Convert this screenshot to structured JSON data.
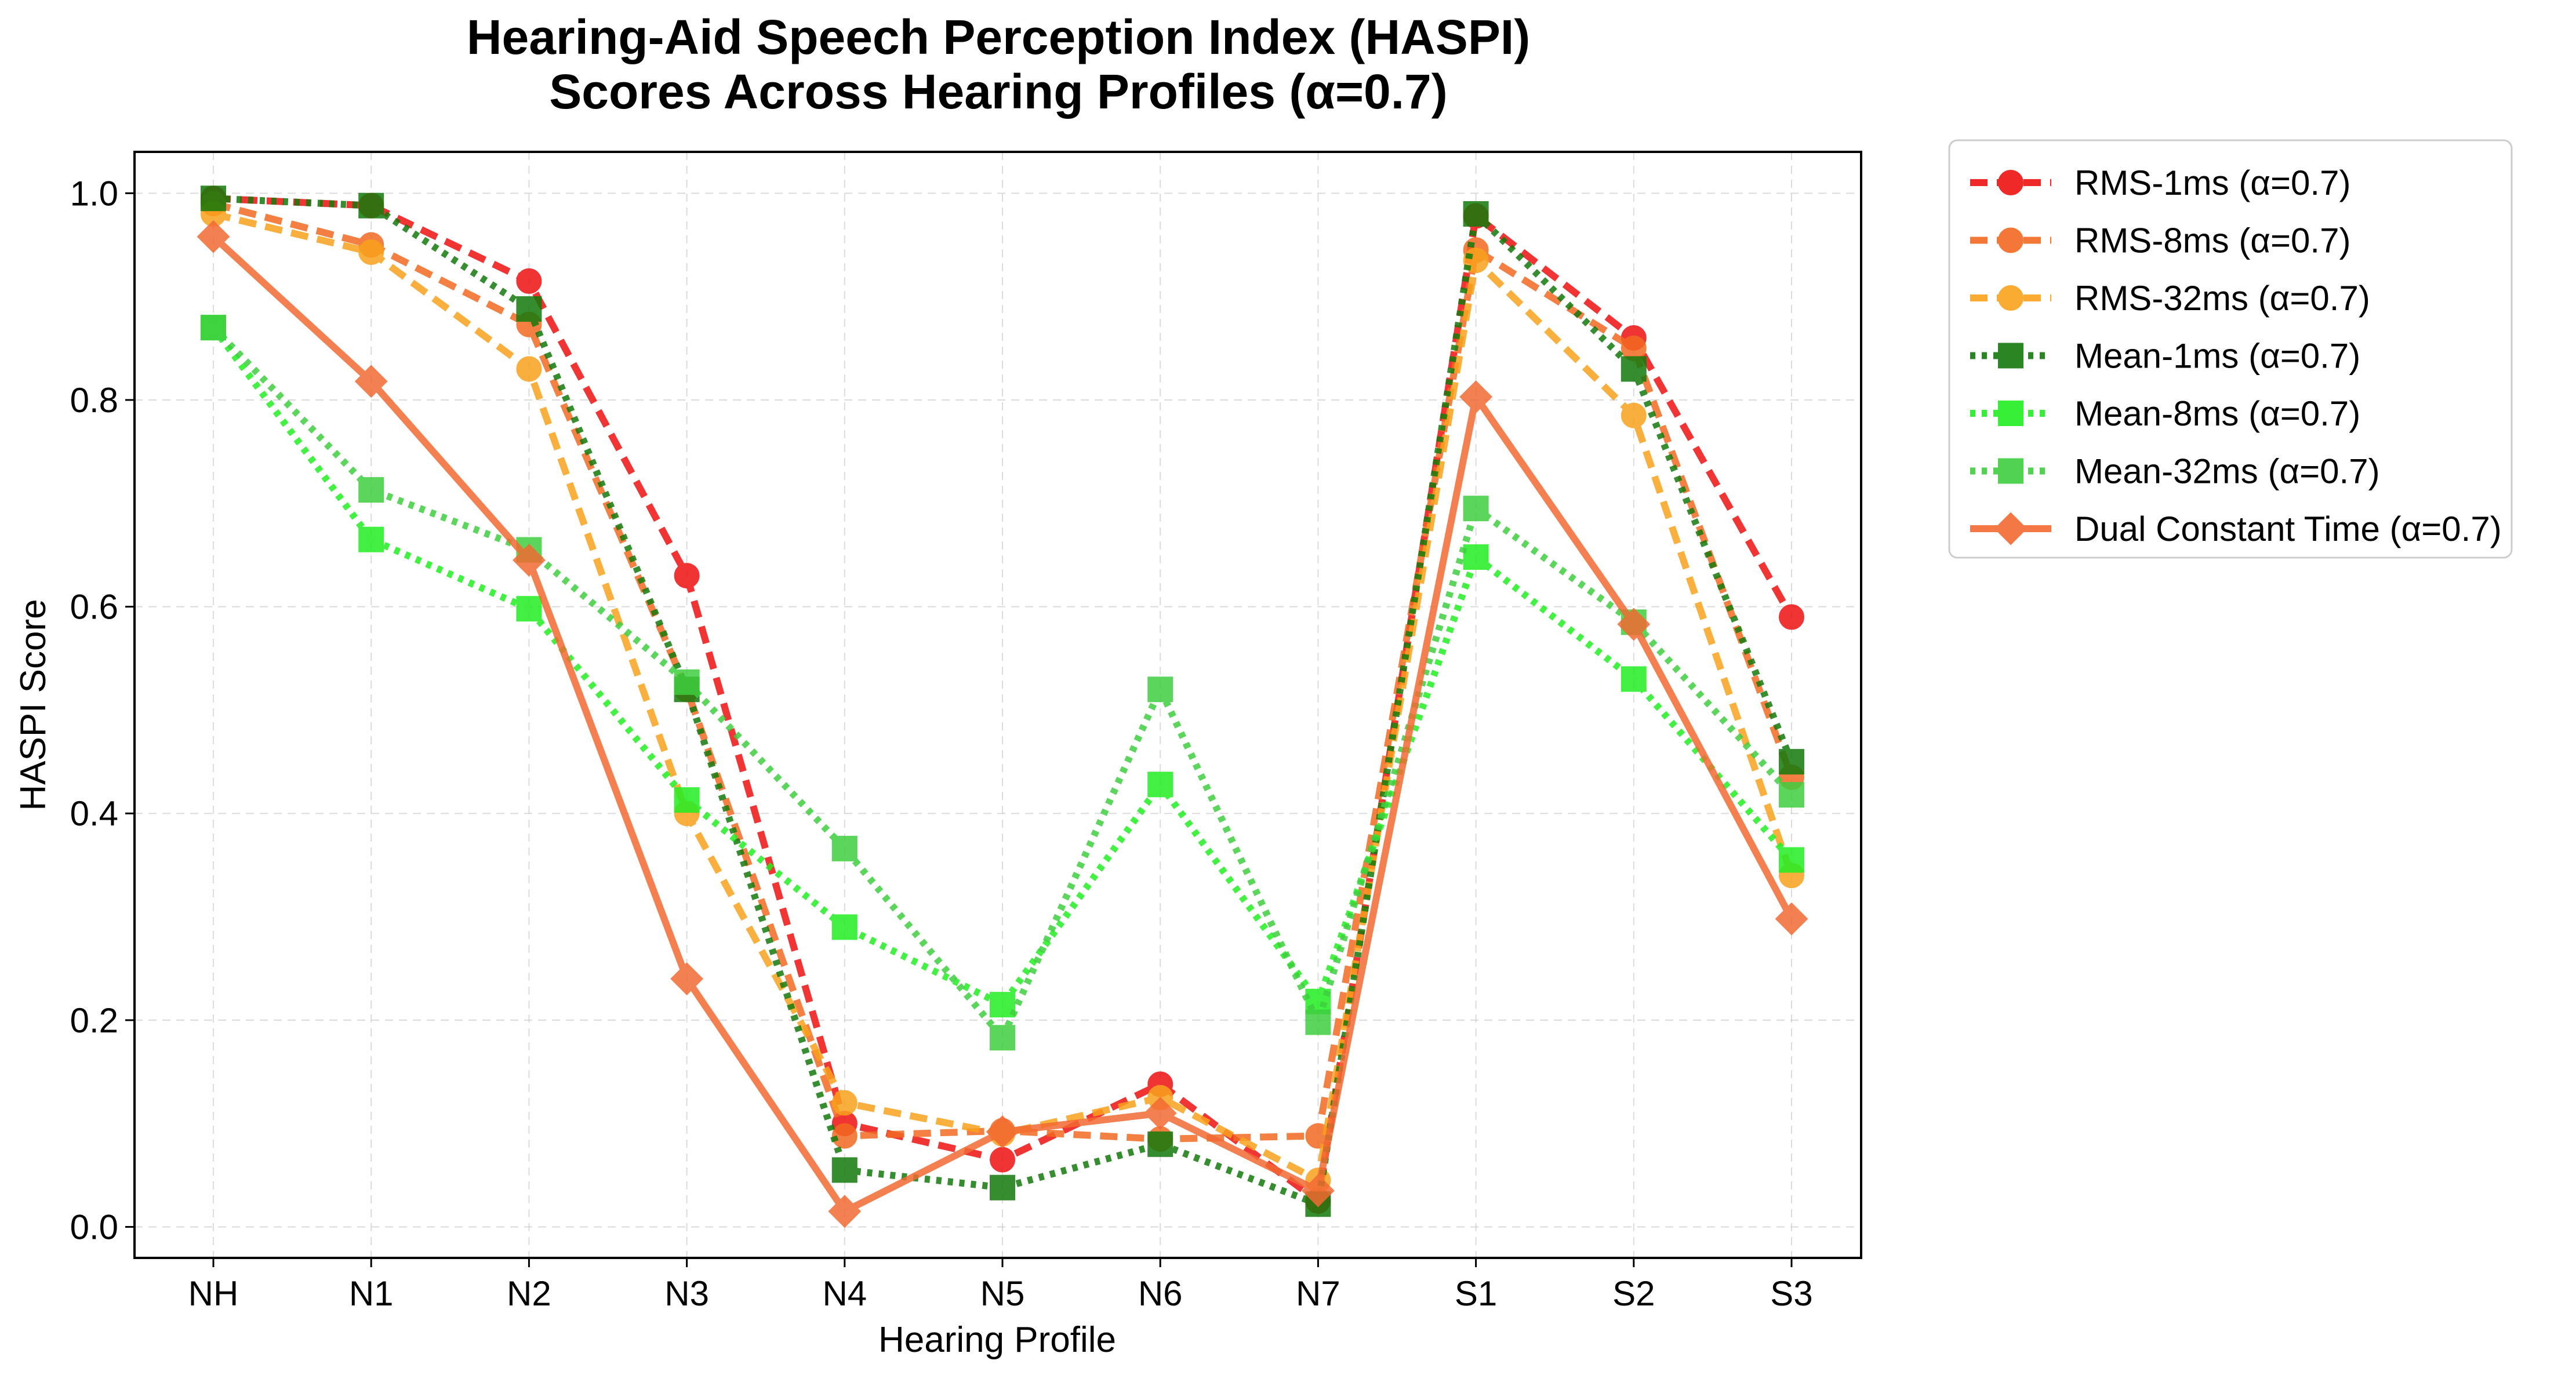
{
  "chart_data": {
    "type": "line",
    "title": [
      "Hearing-Aid Speech Perception Index (HASPI)",
      "Scores Across Hearing Profiles (α=0.7)"
    ],
    "xlabel": "Hearing Profile",
    "ylabel": "HASPI Score",
    "categories": [
      "NH",
      "N1",
      "N2",
      "N3",
      "N4",
      "N5",
      "N6",
      "N7",
      "S1",
      "S2",
      "S3"
    ],
    "ylim": [
      -0.03,
      1.04
    ],
    "yticks": [
      "0.0",
      "0.2",
      "0.4",
      "0.6",
      "0.8",
      "1.0"
    ],
    "grid": true,
    "legend_position": "outside-upper-right",
    "series": [
      {
        "name": "RMS-1ms (α=0.7)",
        "color": "#ee1111",
        "line": "dashed",
        "marker": "circle",
        "values": [
          0.995,
          0.988,
          0.915,
          0.63,
          0.1,
          0.065,
          0.138,
          0.025,
          0.978,
          0.86,
          0.59
        ]
      },
      {
        "name": "RMS-8ms (α=0.7)",
        "color": "#f26a22",
        "line": "dashed",
        "marker": "circle",
        "values": [
          0.99,
          0.95,
          0.873,
          0.52,
          0.088,
          0.093,
          0.085,
          0.088,
          0.945,
          0.85,
          0.435
        ]
      },
      {
        "name": "RMS-32ms (α=0.7)",
        "color": "#f9a21c",
        "line": "dashed",
        "marker": "circle",
        "values": [
          0.98,
          0.943,
          0.83,
          0.4,
          0.12,
          0.09,
          0.125,
          0.045,
          0.935,
          0.785,
          0.34
        ]
      },
      {
        "name": "Mean-1ms (α=0.7)",
        "color": "#147a0c",
        "line": "dotted",
        "marker": "square",
        "values": [
          0.995,
          0.988,
          0.888,
          0.52,
          0.055,
          0.038,
          0.08,
          0.022,
          0.98,
          0.83,
          0.45
        ]
      },
      {
        "name": "Mean-8ms (α=0.7)",
        "color": "#22ee22",
        "line": "dotted",
        "marker": "square",
        "values": [
          0.87,
          0.665,
          0.598,
          0.413,
          0.29,
          0.215,
          0.428,
          0.218,
          0.648,
          0.53,
          0.355
        ]
      },
      {
        "name": "Mean-32ms (α=0.7)",
        "color": "#3fce3f",
        "line": "dotted",
        "marker": "square",
        "values": [
          0.87,
          0.713,
          0.655,
          0.527,
          0.366,
          0.183,
          0.52,
          0.198,
          0.695,
          0.585,
          0.418
        ]
      },
      {
        "name": "Dual Constant Time (α=0.7)",
        "color": "#f26a33",
        "line": "solid",
        "marker": "diamond",
        "values": [
          0.958,
          0.818,
          0.645,
          0.24,
          0.015,
          0.092,
          0.11,
          0.035,
          0.803,
          0.583,
          0.298
        ]
      }
    ]
  }
}
